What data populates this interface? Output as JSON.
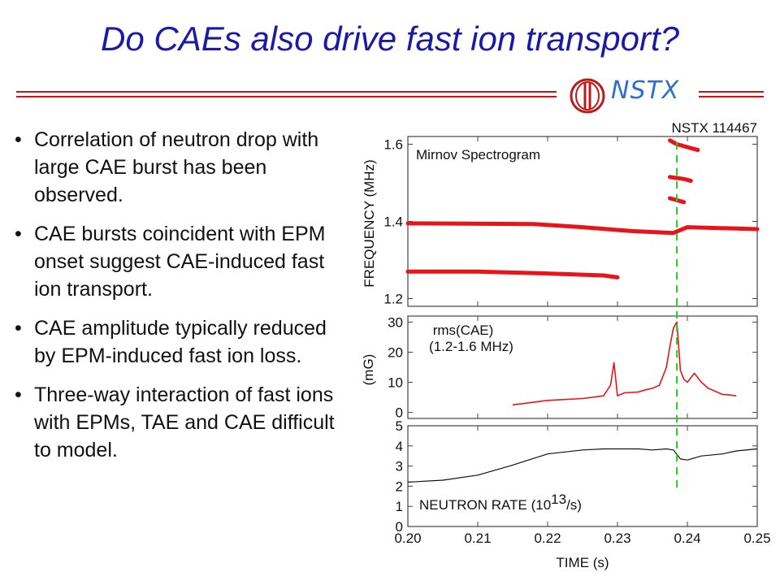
{
  "slide": {
    "title": "Do CAEs also drive fast ion transport?",
    "logo_text": "NSTX",
    "bullets": [
      "Correlation of neutron drop with large CAE burst has been observed.",
      "CAE bursts coincident with EPM onset suggest CAE-induced fast ion transport.",
      "CAE amplitude typically reduced by EPM-induced fast ion loss.",
      "Three-way interaction of fast ions with EPMs, TAE and CAE difficult to model."
    ],
    "colors": {
      "title": "#1a1aa8",
      "rule": "#c01818",
      "trace_red": "#e8141a",
      "marker_green": "#22cc22",
      "logo_blue": "#2d6fd1"
    }
  },
  "chart_data": [
    {
      "type": "heatmap",
      "title": "Mirnov Spectrogram",
      "corner_label": "NSTX 114467",
      "ylabel": "FREQUENCY (MHz)",
      "yticks": [
        "1.2",
        "1.4",
        "1.6"
      ],
      "ylim": [
        1.18,
        1.62
      ],
      "xlim": [
        0.2,
        0.25
      ],
      "bands": [
        {
          "x": [
            0.2,
            0.218,
            0.225,
            0.232,
            0.238,
            0.24,
            0.25
          ],
          "freq": [
            1.395,
            1.393,
            1.385,
            1.375,
            1.37,
            1.385,
            1.38
          ]
        },
        {
          "x": [
            0.2,
            0.21,
            0.22,
            0.228,
            0.23
          ],
          "freq": [
            1.27,
            1.27,
            1.265,
            1.26,
            1.255
          ]
        },
        {
          "x": [
            0.2375,
            0.2385,
            0.2395,
            0.2405,
            0.2415
          ],
          "freq": [
            1.61,
            1.6,
            1.595,
            1.59,
            1.585
          ]
        },
        {
          "x": [
            0.2375,
            0.2395,
            0.2405
          ],
          "freq": [
            1.515,
            1.51,
            1.505
          ]
        },
        {
          "x": [
            0.2375,
            0.2385,
            0.2395
          ],
          "freq": [
            1.46,
            1.455,
            1.45
          ]
        }
      ]
    },
    {
      "type": "line",
      "title": "rms(CAE)",
      "subtitle": "(1.2-1.6 MHz)",
      "ylabel": "(mG)",
      "yticks": [
        "0",
        "10",
        "20",
        "30"
      ],
      "ylim": [
        -2,
        32
      ],
      "xlim": [
        0.2,
        0.25
      ],
      "x": [
        0.215,
        0.22,
        0.225,
        0.228,
        0.229,
        0.2295,
        0.23,
        0.231,
        0.233,
        0.234,
        0.235,
        0.236,
        0.237,
        0.2375,
        0.238,
        0.2385,
        0.239,
        0.2395,
        0.24,
        0.241,
        0.242,
        0.243,
        0.244,
        0.245,
        0.246,
        0.247
      ],
      "values": [
        2.5,
        4.0,
        4.6,
        5.5,
        9.0,
        16.5,
        5.5,
        6.5,
        6.8,
        7.5,
        8.0,
        9.0,
        15.0,
        22.0,
        28.0,
        30.0,
        14.0,
        11.0,
        10.0,
        13.0,
        10.0,
        8.0,
        7.0,
        6.0,
        5.8,
        5.5
      ]
    },
    {
      "type": "line",
      "title": "NEUTRON RATE (10",
      "title_superscript": "13",
      "title_suffix": "/s)",
      "xlabel": "TIME (s)",
      "yticks": [
        "0",
        "1",
        "2",
        "3",
        "4",
        "5"
      ],
      "xticks": [
        "0.20",
        "0.21",
        "0.22",
        "0.23",
        "0.24",
        "0.25"
      ],
      "ylim": [
        0,
        5
      ],
      "xlim": [
        0.2,
        0.25
      ],
      "x": [
        0.2,
        0.205,
        0.21,
        0.215,
        0.22,
        0.225,
        0.228,
        0.23,
        0.233,
        0.235,
        0.237,
        0.238,
        0.239,
        0.24,
        0.242,
        0.245,
        0.247,
        0.25
      ],
      "values": [
        2.2,
        2.3,
        2.55,
        3.05,
        3.6,
        3.8,
        3.85,
        3.85,
        3.85,
        3.8,
        3.85,
        3.8,
        3.35,
        3.3,
        3.5,
        3.6,
        3.75,
        3.85
      ]
    }
  ],
  "marker": {
    "time": 0.2385,
    "style": "dashed",
    "color": "#22cc22"
  }
}
